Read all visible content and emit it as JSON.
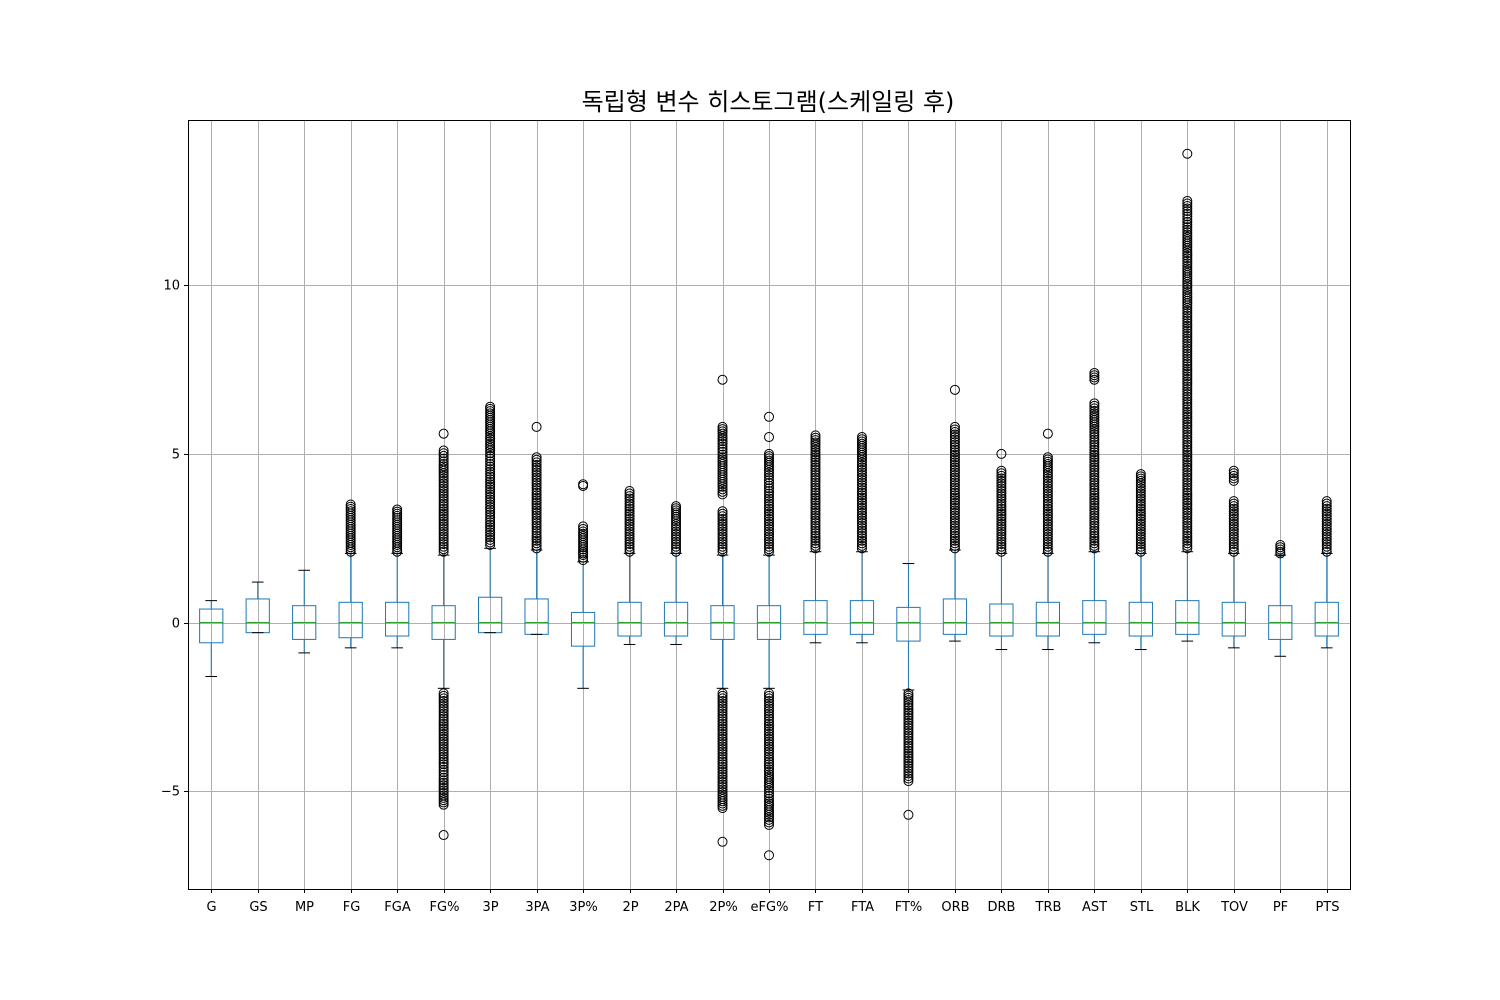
{
  "chart_data": {
    "type": "boxplot",
    "title": "독립형 변수 히스토그램(스케일링 후)",
    "xlabel": "",
    "ylabel": "",
    "ylim": [
      -7.9,
      14.9
    ],
    "yticks": [
      -5,
      0,
      5,
      10
    ],
    "grid": true,
    "colors": {
      "box": "#1f77b4",
      "median": "#2ca02c",
      "caps": "#000000",
      "fliers": "#000000",
      "grid": "#b0b0b0"
    },
    "categories": [
      "G",
      "GS",
      "MP",
      "FG",
      "FGA",
      "FG%",
      "3P",
      "3PA",
      "3P%",
      "2P",
      "2PA",
      "2P%",
      "eFG%",
      "FT",
      "FTA",
      "FT%",
      "ORB",
      "DRB",
      "TRB",
      "AST",
      "STL",
      "BLK",
      "TOV",
      "PF",
      "PTS"
    ],
    "boxes": [
      {
        "name": "G",
        "q1": -0.6,
        "median": 0.0,
        "q3": 0.4,
        "whisker_low": -1.6,
        "whisker_high": 0.65,
        "fliers_high": [],
        "fliers_low": []
      },
      {
        "name": "GS",
        "q1": -0.3,
        "median": 0.0,
        "q3": 0.7,
        "whisker_low": -0.3,
        "whisker_high": 1.2,
        "fliers_high": [],
        "fliers_low": []
      },
      {
        "name": "MP",
        "q1": -0.5,
        "median": 0.0,
        "q3": 0.5,
        "whisker_low": -0.9,
        "whisker_high": 1.55,
        "fliers_high": [],
        "fliers_low": []
      },
      {
        "name": "FG",
        "q1": -0.45,
        "median": 0.0,
        "q3": 0.6,
        "whisker_low": -0.75,
        "whisker_high": 2.05,
        "fliers_high": [
          2.1,
          2.3,
          2.5,
          2.7,
          2.9,
          3.1,
          3.3,
          3.5
        ],
        "fliers_low": []
      },
      {
        "name": "FGA",
        "q1": -0.4,
        "median": 0.0,
        "q3": 0.6,
        "whisker_low": -0.75,
        "whisker_high": 2.05,
        "fliers_high": [
          2.1,
          2.3,
          2.5,
          2.7,
          2.9,
          3.1,
          3.35
        ],
        "fliers_low": []
      },
      {
        "name": "FG%",
        "q1": -0.5,
        "median": 0.0,
        "q3": 0.5,
        "whisker_low": -1.95,
        "whisker_high": 2.0,
        "fliers_high": [
          2.1,
          2.4,
          2.7,
          3.0,
          3.3,
          3.6,
          3.9,
          4.2,
          4.5,
          4.7,
          5.1,
          5.6
        ],
        "fliers_low": [
          -2.1,
          -2.4,
          -2.7,
          -3.0,
          -3.3,
          -3.6,
          -3.9,
          -4.2,
          -4.6,
          -4.9,
          -5.2,
          -5.4,
          -6.3
        ]
      },
      {
        "name": "3P",
        "q1": -0.3,
        "median": 0.0,
        "q3": 0.75,
        "whisker_low": -0.3,
        "whisker_high": 2.2,
        "fliers_high": [
          2.3,
          2.6,
          2.9,
          3.2,
          3.5,
          3.8,
          4.1,
          4.4,
          4.7,
          5.1,
          5.3,
          5.6,
          6.0,
          6.4
        ],
        "fliers_low": []
      },
      {
        "name": "3PA",
        "q1": -0.35,
        "median": 0.0,
        "q3": 0.7,
        "whisker_low": -0.35,
        "whisker_high": 2.15,
        "fliers_high": [
          2.2,
          2.5,
          2.8,
          3.1,
          3.4,
          3.7,
          4.0,
          4.3,
          4.6,
          4.9,
          5.8
        ],
        "fliers_low": []
      },
      {
        "name": "3P%",
        "q1": -0.7,
        "median": 0.0,
        "q3": 0.3,
        "whisker_low": -1.95,
        "whisker_high": 1.8,
        "fliers_high": [
          1.85,
          2.0,
          2.1,
          2.3,
          2.5,
          2.7,
          2.85,
          4.05,
          4.1
        ],
        "fliers_low": []
      },
      {
        "name": "2P",
        "q1": -0.4,
        "median": 0.0,
        "q3": 0.6,
        "whisker_low": -0.65,
        "whisker_high": 2.05,
        "fliers_high": [
          2.1,
          2.4,
          2.7,
          3.0,
          3.3,
          3.6,
          3.9
        ],
        "fliers_low": []
      },
      {
        "name": "2PA",
        "q1": -0.4,
        "median": 0.0,
        "q3": 0.6,
        "whisker_low": -0.65,
        "whisker_high": 2.05,
        "fliers_high": [
          2.1,
          2.4,
          2.7,
          3.0,
          3.2,
          3.45
        ],
        "fliers_low": []
      },
      {
        "name": "2P%",
        "q1": -0.5,
        "median": 0.0,
        "q3": 0.5,
        "whisker_low": -1.95,
        "whisker_high": 2.0,
        "fliers_high": [
          2.1,
          2.4,
          2.7,
          3.0,
          3.3,
          3.8,
          4.1,
          4.5,
          4.9,
          5.3,
          5.6,
          5.8,
          7.2
        ],
        "fliers_low": [
          -2.1,
          -2.4,
          -2.7,
          -3.0,
          -3.3,
          -3.6,
          -3.9,
          -4.2,
          -4.5,
          -4.8,
          -5.1,
          -5.5,
          -6.5
        ]
      },
      {
        "name": "eFG%",
        "q1": -0.5,
        "median": 0.0,
        "q3": 0.5,
        "whisker_low": -1.95,
        "whisker_high": 2.0,
        "fliers_high": [
          2.1,
          2.4,
          2.7,
          3.0,
          3.3,
          3.6,
          3.9,
          4.3,
          4.6,
          5.0,
          5.5,
          6.1
        ],
        "fliers_low": [
          -2.1,
          -2.4,
          -2.7,
          -3.0,
          -3.3,
          -3.6,
          -3.9,
          -4.2,
          -4.5,
          -4.9,
          -5.3,
          -5.7,
          -6.0,
          -6.9
        ]
      },
      {
        "name": "FT",
        "q1": -0.35,
        "median": 0.0,
        "q3": 0.65,
        "whisker_low": -0.6,
        "whisker_high": 2.1,
        "fliers_high": [
          2.2,
          2.5,
          2.8,
          3.1,
          3.4,
          3.7,
          4.0,
          4.3,
          4.6,
          4.9,
          5.2,
          5.55
        ],
        "fliers_low": []
      },
      {
        "name": "FTA",
        "q1": -0.35,
        "median": 0.0,
        "q3": 0.65,
        "whisker_low": -0.6,
        "whisker_high": 2.1,
        "fliers_high": [
          2.2,
          2.5,
          2.8,
          3.1,
          3.4,
          3.7,
          4.0,
          4.3,
          4.6,
          4.9,
          5.1,
          5.5
        ],
        "fliers_low": []
      },
      {
        "name": "FT%",
        "q1": -0.55,
        "median": 0.0,
        "q3": 0.45,
        "whisker_low": -2.0,
        "whisker_high": 1.75,
        "fliers_high": [],
        "fliers_low": [
          -2.1,
          -2.3,
          -2.6,
          -2.9,
          -3.2,
          -3.5,
          -3.8,
          -4.1,
          -4.4,
          -4.7,
          -5.7
        ]
      },
      {
        "name": "ORB",
        "q1": -0.35,
        "median": 0.0,
        "q3": 0.7,
        "whisker_low": -0.55,
        "whisker_high": 2.15,
        "fliers_high": [
          2.2,
          2.5,
          2.8,
          3.1,
          3.4,
          3.7,
          4.0,
          4.3,
          4.6,
          4.9,
          5.2,
          5.5,
          5.8,
          6.9
        ],
        "fliers_low": []
      },
      {
        "name": "DRB",
        "q1": -0.4,
        "median": 0.0,
        "q3": 0.55,
        "whisker_low": -0.8,
        "whisker_high": 2.05,
        "fliers_high": [
          2.1,
          2.4,
          2.7,
          3.0,
          3.3,
          3.6,
          3.9,
          4.2,
          4.5,
          5.0
        ],
        "fliers_low": []
      },
      {
        "name": "TRB",
        "q1": -0.4,
        "median": 0.0,
        "q3": 0.6,
        "whisker_low": -0.8,
        "whisker_high": 2.05,
        "fliers_high": [
          2.1,
          2.4,
          2.7,
          3.0,
          3.3,
          3.6,
          3.9,
          4.2,
          4.5,
          4.9,
          5.6
        ],
        "fliers_low": []
      },
      {
        "name": "AST",
        "q1": -0.35,
        "median": 0.0,
        "q3": 0.65,
        "whisker_low": -0.6,
        "whisker_high": 2.1,
        "fliers_high": [
          2.2,
          2.5,
          2.8,
          3.1,
          3.4,
          3.7,
          4.0,
          4.3,
          4.6,
          4.9,
          5.2,
          5.5,
          5.8,
          6.2,
          6.5,
          7.2,
          7.4
        ],
        "fliers_low": []
      },
      {
        "name": "STL",
        "q1": -0.4,
        "median": 0.0,
        "q3": 0.6,
        "whisker_low": -0.8,
        "whisker_high": 2.05,
        "fliers_high": [
          2.1,
          2.4,
          2.7,
          3.0,
          3.3,
          3.6,
          3.9,
          4.2,
          4.4
        ],
        "fliers_low": []
      },
      {
        "name": "BLK",
        "q1": -0.35,
        "median": 0.0,
        "q3": 0.65,
        "whisker_low": -0.55,
        "whisker_high": 2.1,
        "fliers_high": [
          2.2,
          2.5,
          2.8,
          3.1,
          3.4,
          3.7,
          4.0,
          4.3,
          4.6,
          4.9,
          5.2,
          5.5,
          5.8,
          6.1,
          6.4,
          6.7,
          7.0,
          7.3,
          7.6,
          7.9,
          8.2,
          8.5,
          8.8,
          9.1,
          9.4,
          9.8,
          10.1,
          10.5,
          10.8,
          11.1,
          11.5,
          11.8,
          12.2,
          12.5,
          13.9
        ],
        "fliers_low": []
      },
      {
        "name": "TOV",
        "q1": -0.4,
        "median": 0.0,
        "q3": 0.6,
        "whisker_low": -0.75,
        "whisker_high": 2.05,
        "fliers_high": [
          2.1,
          2.4,
          2.7,
          3.0,
          3.3,
          3.6,
          4.2,
          4.5
        ],
        "fliers_low": []
      },
      {
        "name": "PF",
        "q1": -0.5,
        "median": 0.0,
        "q3": 0.5,
        "whisker_low": -1.0,
        "whisker_high": 2.0,
        "fliers_high": [
          2.05,
          2.1,
          2.3
        ],
        "fliers_low": []
      },
      {
        "name": "PTS",
        "q1": -0.4,
        "median": 0.0,
        "q3": 0.6,
        "whisker_low": -0.75,
        "whisker_high": 2.05,
        "fliers_high": [
          2.1,
          2.4,
          2.7,
          3.0,
          3.3,
          3.6
        ],
        "fliers_low": []
      }
    ]
  }
}
